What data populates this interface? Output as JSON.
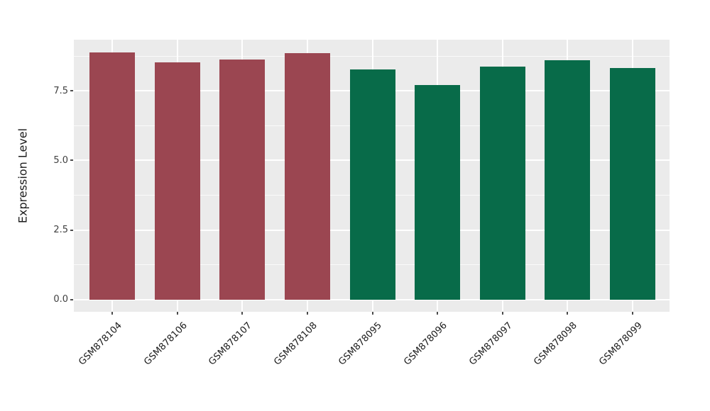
{
  "figure": {
    "background_color": "#ffffff"
  },
  "panel": {
    "background_color": "#EBEBEB",
    "major_gridline_color": "#ffffff",
    "minor_gridline_color": "#ffffff"
  },
  "chart_data": {
    "type": "bar",
    "title": "",
    "xlabel": "",
    "ylabel": "Expression Level",
    "categories": [
      "GSM878104",
      "GSM878106",
      "GSM878107",
      "GSM878108",
      "GSM878095",
      "GSM878096",
      "GSM878097",
      "GSM878098",
      "GSM878099"
    ],
    "values": [
      8.89,
      8.52,
      8.63,
      8.86,
      8.26,
      7.71,
      8.36,
      8.6,
      8.31
    ],
    "bar_colors": [
      "#9B4651",
      "#9B4651",
      "#9B4651",
      "#9B4651",
      "#086B49",
      "#086B49",
      "#086B49",
      "#086B49",
      "#086B49"
    ],
    "group_colors": {
      "maroon_group": "#9B4651",
      "green_group": "#086B49"
    },
    "yticks": [
      0,
      2.5,
      5,
      7.5
    ],
    "ytick_labels": [
      "0.0",
      "2.5",
      "5.0",
      "7.5"
    ],
    "yminor_ticks": [
      1.25,
      3.75,
      6.25,
      8.75
    ],
    "ylim": [
      -0.44,
      9.33
    ],
    "bar_width_fraction": 0.7,
    "grid": "horizontal major+minor, vertical major at category centers",
    "legend": "none",
    "x_label_rotation_deg": 45
  }
}
